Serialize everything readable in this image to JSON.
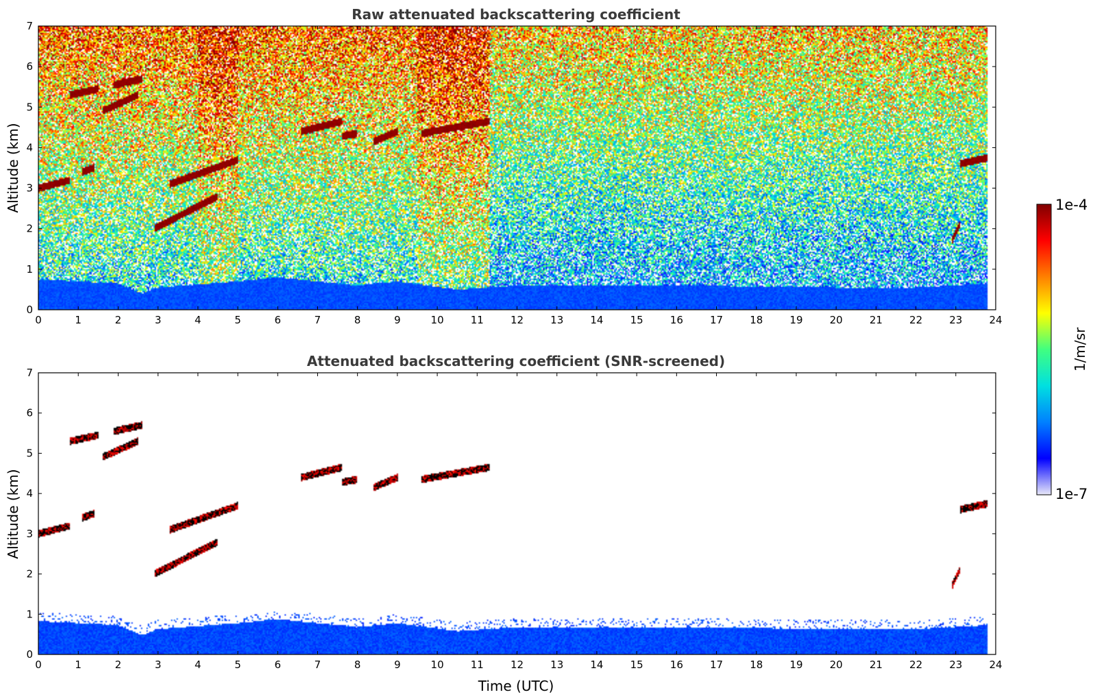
{
  "chart_data": [
    {
      "type": "heatmap",
      "title": "Raw attenuated backscattering coefficient",
      "xlabel": "",
      "ylabel": "Altitude (km)",
      "xlim": [
        0,
        24
      ],
      "ylim": [
        0,
        7
      ],
      "xticks": [
        "0",
        "1",
        "2",
        "3",
        "4",
        "5",
        "6",
        "7",
        "8",
        "9",
        "10",
        "11",
        "12",
        "13",
        "14",
        "15",
        "16",
        "17",
        "18",
        "19",
        "20",
        "21",
        "22",
        "23",
        "24"
      ],
      "yticks": [
        "0",
        "1",
        "2",
        "3",
        "4",
        "5",
        "6",
        "7"
      ],
      "data_end_time": 23.8,
      "features": {
        "boundary_layer_top_km": [
          [
            0,
            0.75
          ],
          [
            2,
            0.65
          ],
          [
            2.6,
            0.4
          ],
          [
            3,
            0.55
          ],
          [
            5,
            0.7
          ],
          [
            6,
            0.8
          ],
          [
            8,
            0.6
          ],
          [
            9,
            0.7
          ],
          [
            10.5,
            0.5
          ],
          [
            12,
            0.6
          ],
          [
            16,
            0.6
          ],
          [
            20,
            0.55
          ],
          [
            22,
            0.55
          ],
          [
            23.8,
            0.65
          ]
        ],
        "clouds": [
          {
            "t": [
              0.0,
              0.8
            ],
            "alt_km": [
              3.0,
              3.2
            ]
          },
          {
            "t": [
              0.8,
              1.5
            ],
            "alt_km": [
              5.3,
              5.45
            ]
          },
          {
            "t": [
              1.1,
              1.4
            ],
            "alt_km": [
              3.4,
              3.5
            ]
          },
          {
            "t": [
              1.6,
              2.5
            ],
            "alt_km": [
              4.9,
              5.3
            ]
          },
          {
            "t": [
              1.9,
              2.6
            ],
            "alt_km": [
              5.55,
              5.7
            ]
          },
          {
            "t": [
              2.9,
              4.5
            ],
            "alt_km": [
              2.0,
              2.8
            ]
          },
          {
            "t": [
              3.3,
              5.0
            ],
            "alt_km": [
              3.1,
              3.7
            ]
          },
          {
            "t": [
              6.6,
              7.6
            ],
            "alt_km": [
              4.4,
              4.65
            ]
          },
          {
            "t": [
              7.6,
              8.0
            ],
            "alt_km": [
              4.28,
              4.35
            ]
          },
          {
            "t": [
              8.4,
              9.0
            ],
            "alt_km": [
              4.15,
              4.4
            ]
          },
          {
            "t": [
              9.6,
              11.3
            ],
            "alt_km": [
              4.35,
              4.65
            ]
          },
          {
            "t": [
              23.1,
              23.8
            ],
            "alt_km": [
              3.6,
              3.75
            ]
          },
          {
            "t": [
              22.9,
              23.1
            ],
            "alt_km": [
              1.7,
              2.1
            ]
          }
        ]
      }
    },
    {
      "type": "heatmap",
      "title": "Attenuated backscattering coefficient (SNR-screened)",
      "xlabel": "Time (UTC)",
      "ylabel": "Altitude (km)",
      "xlim": [
        0,
        24
      ],
      "ylim": [
        0,
        7
      ],
      "xticks": [
        "0",
        "1",
        "2",
        "3",
        "4",
        "5",
        "6",
        "7",
        "8",
        "9",
        "10",
        "11",
        "12",
        "13",
        "14",
        "15",
        "16",
        "17",
        "18",
        "19",
        "20",
        "21",
        "22",
        "23",
        "24"
      ],
      "yticks": [
        "0",
        "1",
        "2",
        "3",
        "4",
        "5",
        "6",
        "7"
      ]
    }
  ],
  "colorbar": {
    "label": "1/m/sr",
    "max_label": "1e-4",
    "min_label": "1e-7",
    "scale": "log",
    "colormap": [
      "#e8e8f8",
      "#0000ff",
      "#0080ff",
      "#00e0e0",
      "#40ff80",
      "#ffff00",
      "#ff8000",
      "#ff0000",
      "#800000"
    ]
  }
}
